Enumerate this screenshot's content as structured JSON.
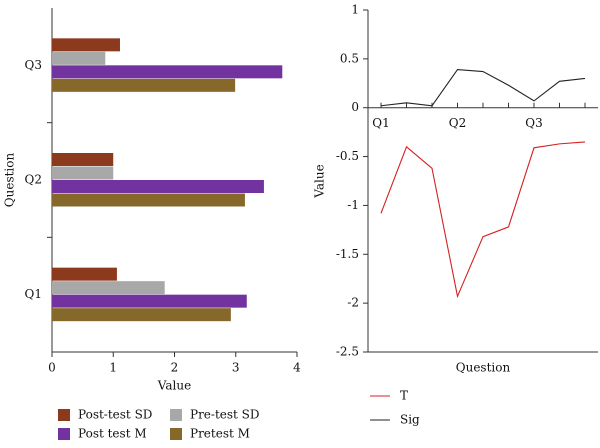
{
  "chart_data": [
    {
      "type": "bar",
      "horizontal": true,
      "categories": [
        "Q1",
        "Q2",
        "Q3"
      ],
      "series": [
        {
          "name": "Post-test SD",
          "color": "#8b3a1e",
          "values": [
            1.06,
            1.0,
            1.11
          ]
        },
        {
          "name": "Pre-test SD",
          "color": "#a8a8a8",
          "values": [
            1.84,
            1.0,
            0.87
          ]
        },
        {
          "name": "Post test M",
          "color": "#7232a0",
          "values": [
            3.18,
            3.46,
            3.76
          ]
        },
        {
          "name": "Pretest M",
          "color": "#86682a",
          "values": [
            2.92,
            3.15,
            2.99
          ]
        }
      ],
      "xlabel": "Value",
      "ylabel": "Question",
      "xlim": [
        0,
        4
      ],
      "xticks": [
        0,
        1,
        2,
        3,
        4
      ]
    },
    {
      "type": "line",
      "categories": [
        "Q1",
        null,
        null,
        "Q2",
        null,
        null,
        "Q3",
        null,
        null
      ],
      "series": [
        {
          "name": "T",
          "color": "#d42020",
          "values": [
            -1.08,
            -0.4,
            -0.62,
            -1.93,
            -1.32,
            -1.22,
            -0.41,
            -0.37,
            -0.35
          ]
        },
        {
          "name": "Sig",
          "color": "#222222",
          "values": [
            0.02,
            0.05,
            0.02,
            0.39,
            0.37,
            0.23,
            0.07,
            0.27,
            0.3
          ]
        }
      ],
      "xlabel": "Question",
      "ylabel": "Value",
      "ylim": [
        -2.5,
        1
      ],
      "yticks": [
        -2.5,
        -2,
        -1.5,
        -1,
        -0.5,
        0,
        0.5,
        1
      ]
    }
  ]
}
